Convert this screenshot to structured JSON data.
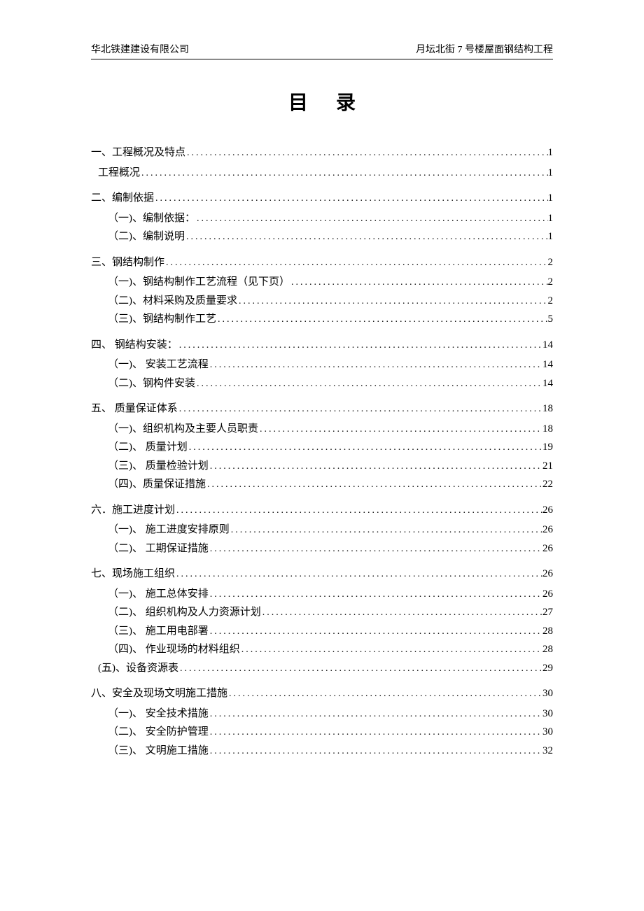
{
  "header": {
    "left": "华北铁建建设有限公司",
    "right": "月坛北街 7 号楼屋面钢结构工程"
  },
  "title": "目录",
  "colors": {
    "text": "#000000",
    "background": "#ffffff",
    "line": "#000000"
  },
  "typography": {
    "body_font": "SimSun",
    "header_fontsize": 14,
    "title_fontsize": 28,
    "toc_fontsize": 15
  },
  "toc": [
    {
      "level": 1,
      "label": "一、工程概况及特点",
      "page": "1"
    },
    {
      "level": 2,
      "indent": "b",
      "label": "工程概况",
      "page": "1"
    },
    {
      "level": 1,
      "label": "二、编制依据",
      "page": "1"
    },
    {
      "level": 2,
      "label": "（一)、编制依据：",
      "page": "1"
    },
    {
      "level": 2,
      "label": "（二)、编制说明",
      "page": "1"
    },
    {
      "level": 1,
      "label": "三、钢结构制作",
      "page": "2"
    },
    {
      "level": 2,
      "label": "（一)、钢结构制作工艺流程（见下页）",
      "page": "2"
    },
    {
      "level": 2,
      "label": "（二)、材料采购及质量要求",
      "page": "2"
    },
    {
      "level": 2,
      "label": "（三)、钢结构制作工艺",
      "page": "5"
    },
    {
      "level": 1,
      "label": "四、 钢结构安装：",
      "page": "14"
    },
    {
      "level": 2,
      "label": "（一)、 安装工艺流程",
      "page": "14"
    },
    {
      "level": 2,
      "label": "（二)、钢构件安装",
      "page": "14"
    },
    {
      "level": 1,
      "label": "五、 质量保证体系",
      "page": "18"
    },
    {
      "level": 2,
      "label": "（一)、组织机构及主要人员职责",
      "page": "18"
    },
    {
      "level": 2,
      "label": "（二)、 质量计划",
      "page": "19"
    },
    {
      "level": 2,
      "label": "（三)、 质量检验计划",
      "page": "21"
    },
    {
      "level": 2,
      "label": "（四)、质量保证措施",
      "page": "22"
    },
    {
      "level": 1,
      "label": "六．施工进度计划",
      "page": "26"
    },
    {
      "level": 2,
      "label": "（一)、 施工进度安排原则",
      "page": "26"
    },
    {
      "level": 2,
      "label": "（二)、 工期保证措施",
      "page": "26"
    },
    {
      "level": 1,
      "label": "七、现场施工组织",
      "page": "26"
    },
    {
      "level": 2,
      "label": "（一)、  施工总体安排",
      "page": "26"
    },
    {
      "level": 2,
      "label": "（二)、  组织机构及人力资源计划",
      "page": "27"
    },
    {
      "level": 2,
      "label": "（三)、  施工用电部署",
      "page": "28"
    },
    {
      "level": 2,
      "label": "（四)、  作业现场的材料组织",
      "page": "28"
    },
    {
      "level": 2,
      "indent": "b",
      "label": "(五)、设备资源表",
      "page": "29"
    },
    {
      "level": 1,
      "label": "八、安全及现场文明施工措施",
      "page": "30"
    },
    {
      "level": 2,
      "label": "（一)、 安全技术措施",
      "page": "30"
    },
    {
      "level": 2,
      "label": "（二)、 安全防护管理",
      "page": "30"
    },
    {
      "level": 2,
      "label": "（三)、 文明施工措施",
      "page": "32"
    }
  ]
}
